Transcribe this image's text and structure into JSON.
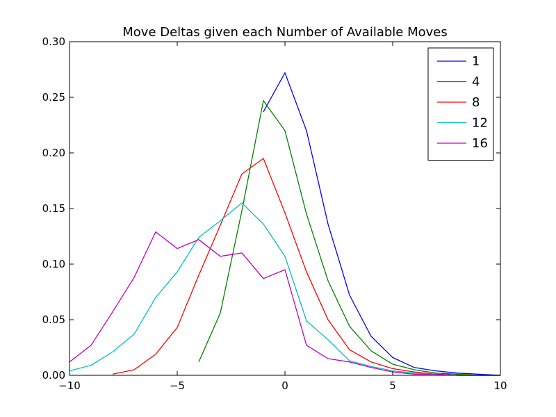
{
  "chart_data": {
    "type": "line",
    "title": "Move Deltas given each Number of Available Moves",
    "xlabel": "",
    "ylabel": "",
    "xlim": [
      -10,
      10
    ],
    "ylim": [
      0,
      0.3
    ],
    "xticks": [
      -10,
      -5,
      0,
      5,
      10
    ],
    "xtick_labels": [
      "−10",
      "−5",
      "0",
      "5",
      "10"
    ],
    "yticks": [
      0,
      0.05,
      0.1,
      0.15,
      0.2,
      0.25,
      0.3
    ],
    "ytick_labels": [
      "0.00",
      "0.05",
      "0.10",
      "0.15",
      "0.20",
      "0.25",
      "0.30"
    ],
    "grid": false,
    "legend_position": "top-right",
    "series": [
      {
        "name": "1",
        "color": "#0000ff",
        "x": [
          -1,
          0,
          1,
          2,
          3,
          4,
          5,
          6,
          7,
          8,
          9,
          10
        ],
        "y": [
          0.237,
          0.272,
          0.22,
          0.136,
          0.072,
          0.035,
          0.016,
          0.007,
          0.004,
          0.002,
          0.001,
          0.0
        ]
      },
      {
        "name": "4",
        "color": "#008000",
        "x": [
          -4,
          -3,
          -2,
          -1,
          0,
          1,
          2,
          3,
          4,
          5,
          6,
          7,
          8,
          9,
          10
        ],
        "y": [
          0.012,
          0.056,
          0.148,
          0.247,
          0.22,
          0.145,
          0.085,
          0.044,
          0.022,
          0.01,
          0.005,
          0.002,
          0.001,
          0.0,
          0.0
        ]
      },
      {
        "name": "8",
        "color": "#ff0000",
        "x": [
          -8,
          -7,
          -6,
          -5,
          -4,
          -3,
          -2,
          -1,
          0,
          1,
          2,
          3,
          4,
          5,
          6,
          7,
          8,
          9,
          10
        ],
        "y": [
          0.001,
          0.005,
          0.019,
          0.043,
          0.09,
          0.135,
          0.181,
          0.195,
          0.146,
          0.093,
          0.05,
          0.023,
          0.012,
          0.006,
          0.003,
          0.001,
          0.0,
          0.0,
          0.0
        ]
      },
      {
        "name": "12",
        "color": "#00bfbf",
        "x": [
          -10,
          -9,
          -8,
          -7,
          -6,
          -5,
          -4,
          -3,
          -2,
          -1,
          0,
          1,
          2,
          3,
          4,
          5,
          6,
          7,
          8,
          9,
          10
        ],
        "y": [
          0.004,
          0.009,
          0.021,
          0.037,
          0.07,
          0.093,
          0.124,
          0.139,
          0.155,
          0.136,
          0.107,
          0.049,
          0.032,
          0.013,
          0.008,
          0.004,
          0.002,
          0.001,
          0.0,
          0.0,
          0.0
        ]
      },
      {
        "name": "16",
        "color": "#bf00bf",
        "x": [
          -10,
          -9,
          -8,
          -7,
          -6,
          -5,
          -4,
          -3,
          -2,
          -1,
          0,
          1,
          2,
          3,
          4,
          5,
          6,
          7,
          8,
          9,
          10
        ],
        "y": [
          0.012,
          0.027,
          0.057,
          0.088,
          0.129,
          0.114,
          0.122,
          0.107,
          0.11,
          0.087,
          0.095,
          0.027,
          0.015,
          0.012,
          0.007,
          0.003,
          0.001,
          0.001,
          0.0,
          0.0,
          0.0
        ]
      }
    ]
  }
}
